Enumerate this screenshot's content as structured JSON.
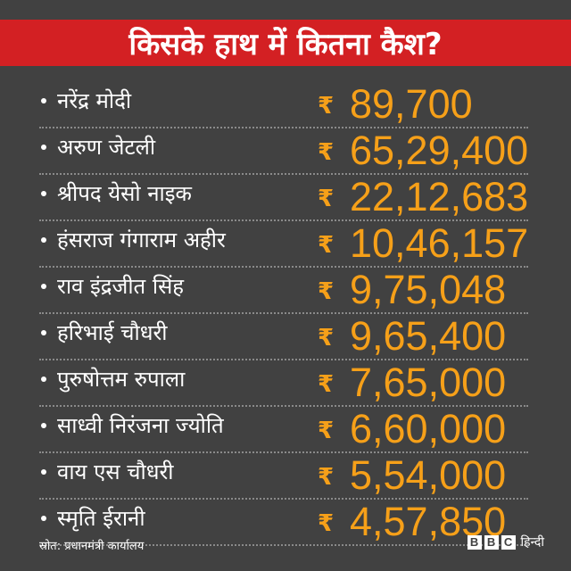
{
  "header": {
    "title": "किसके हाथ में कितना कैश?"
  },
  "rupee_symbol": "₹",
  "rows": [
    {
      "name": "नरेंद्र मोदी",
      "amount": "89,700"
    },
    {
      "name": "अरुण जेटली",
      "amount": "65,29,400"
    },
    {
      "name": "श्रीपद येसो नाइक",
      "amount": "22,12,683"
    },
    {
      "name": "हंसराज गंगाराम अहीर",
      "amount": "10,46,157"
    },
    {
      "name": "राव इंद्रजीत सिंह",
      "amount": "9,75,048"
    },
    {
      "name": "हरिभाई चौधरी",
      "amount": "9,65,400"
    },
    {
      "name": "पुरुषोत्तम रुपाला",
      "amount": "7,65,000"
    },
    {
      "name": "साध्वी निरंजना ज्योति",
      "amount": "6,60,000"
    },
    {
      "name": "वाय एस चौधरी",
      "amount": "5,54,000"
    },
    {
      "name": "स्मृति ईरानी",
      "amount": "4,57,850"
    }
  ],
  "footer": {
    "source": "स्रोत: प्रधानमंत्री कार्यालय",
    "logo_letters": [
      "B",
      "B",
      "C"
    ],
    "logo_text": "हिन्दी"
  },
  "colors": {
    "background": "#414141",
    "header_bg": "#d32023",
    "amount": "#f6a019",
    "text": "#ffffff"
  }
}
